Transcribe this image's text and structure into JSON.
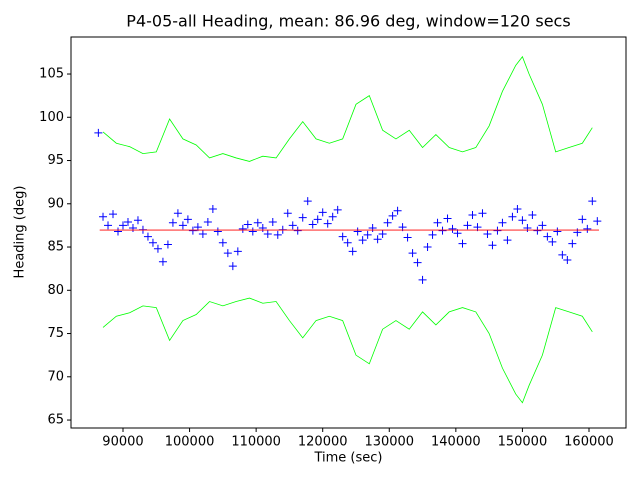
{
  "chart_data": {
    "type": "scatter",
    "title": "P4-05-all Heading, mean: 86.96 deg, window=120 secs",
    "xlabel": "Time (sec)",
    "ylabel": "Heading (deg)",
    "xlim": [
      82190,
      165560
    ],
    "ylim": [
      64.08,
      109.28
    ],
    "xticks": [
      90000,
      100000,
      110000,
      120000,
      130000,
      140000,
      150000,
      160000
    ],
    "yticks": [
      65,
      70,
      75,
      80,
      85,
      90,
      95,
      100,
      105
    ],
    "grid": false,
    "series": [
      {
        "kind": "points",
        "marker": "+",
        "color": "#0000ff",
        "x": [
          86300,
          87000,
          87750,
          88500,
          89250,
          90000,
          90750,
          91500,
          92250,
          93000,
          93750,
          94500,
          95250,
          96000,
          96750,
          97500,
          98250,
          99000,
          99750,
          100500,
          101250,
          102000,
          102750,
          103500,
          104250,
          105000,
          105750,
          106500,
          107250,
          108000,
          108750,
          109500,
          110250,
          111000,
          111750,
          112500,
          113250,
          114000,
          114750,
          115500,
          116250,
          117000,
          117750,
          118500,
          119250,
          120000,
          120750,
          121500,
          122250,
          123000,
          123750,
          124500,
          125250,
          126000,
          126750,
          127500,
          128250,
          129000,
          129750,
          130500,
          131250,
          132000,
          132750,
          133500,
          134250,
          135000,
          135750,
          136500,
          137250,
          138000,
          138750,
          139500,
          140250,
          141000,
          141750,
          142500,
          143250,
          144000,
          144750,
          145500,
          146250,
          147000,
          147750,
          148500,
          149250,
          150000,
          150750,
          151500,
          152250,
          153000,
          153750,
          154500,
          155250,
          156000,
          156750,
          157500,
          158250,
          159000,
          159750,
          160500,
          161250
        ],
        "values": [
          98.2,
          88.5,
          87.5,
          88.8,
          86.8,
          87.5,
          87.9,
          87.2,
          88.1,
          87.0,
          86.2,
          85.5,
          84.8,
          83.3,
          85.3,
          87.8,
          88.9,
          87.5,
          88.2,
          86.9,
          87.3,
          86.5,
          87.9,
          89.4,
          86.8,
          85.5,
          84.3,
          82.8,
          84.5,
          87.1,
          87.6,
          86.8,
          87.8,
          87.2,
          86.5,
          87.9,
          86.4,
          87.0,
          88.9,
          87.5,
          86.9,
          88.4,
          90.3,
          87.6,
          88.2,
          89.0,
          87.7,
          88.5,
          89.3,
          86.2,
          85.5,
          84.5,
          86.8,
          85.8,
          86.4,
          87.2,
          85.9,
          86.5,
          87.8,
          88.6,
          89.2,
          87.3,
          86.1,
          84.3,
          83.2,
          81.2,
          85.0,
          86.4,
          87.8,
          86.9,
          88.3,
          87.1,
          86.6,
          85.4,
          87.5,
          88.7,
          87.3,
          88.9,
          86.5,
          85.2,
          86.9,
          87.8,
          85.8,
          88.5,
          89.4,
          88.1,
          87.2,
          88.7,
          86.9,
          87.5,
          86.2,
          85.6,
          86.8,
          84.1,
          83.5,
          85.4,
          86.7,
          88.2,
          87.1,
          90.3,
          88.0
        ]
      },
      {
        "kind": "line",
        "color": "#ff0000",
        "x": [
          86500,
          161500
        ],
        "values": [
          86.96,
          86.96
        ]
      },
      {
        "kind": "line",
        "color": "#00ff00",
        "x": [
          87000,
          89000,
          91000,
          93000,
          95000,
          97000,
          99000,
          101000,
          103000,
          105000,
          107000,
          109000,
          111000,
          113000,
          115000,
          117000,
          119000,
          121000,
          123000,
          125000,
          127000,
          129000,
          131000,
          133000,
          135000,
          137000,
          139000,
          141000,
          143000,
          145000,
          147000,
          149000,
          150000,
          151000,
          153000,
          155000,
          157000,
          159000,
          160500
        ],
        "values": [
          98.3,
          97,
          96.6,
          95.8,
          96,
          99.8,
          97.5,
          96.8,
          95.3,
          95.8,
          95.3,
          94.9,
          95.5,
          95.3,
          97.5,
          99.5,
          97.5,
          97,
          97.5,
          101.5,
          102.5,
          98.5,
          97.5,
          98.5,
          96.5,
          98,
          96.5,
          96,
          96.5,
          99,
          103,
          106,
          107,
          105,
          101.5,
          96,
          96.5,
          97,
          98.8
        ]
      },
      {
        "kind": "line",
        "color": "#00ff00",
        "x": [
          87000,
          89000,
          91000,
          93000,
          95000,
          97000,
          99000,
          101000,
          103000,
          105000,
          107000,
          109000,
          111000,
          113000,
          115000,
          117000,
          119000,
          121000,
          123000,
          125000,
          127000,
          129000,
          131000,
          133000,
          135000,
          137000,
          139000,
          141000,
          143000,
          145000,
          147000,
          149000,
          150000,
          151000,
          153000,
          155000,
          157000,
          159000,
          160500
        ],
        "values": [
          75.7,
          77,
          77.4,
          78.2,
          78,
          74.2,
          76.5,
          77.2,
          78.7,
          78.2,
          78.7,
          79.1,
          78.5,
          78.7,
          76.5,
          74.5,
          76.5,
          77,
          76.5,
          72.5,
          71.5,
          75.5,
          76.5,
          75.5,
          77.5,
          76,
          77.5,
          78,
          77.5,
          75,
          71,
          68,
          67,
          69,
          72.5,
          78,
          77.5,
          77,
          75.2
        ]
      }
    ]
  }
}
